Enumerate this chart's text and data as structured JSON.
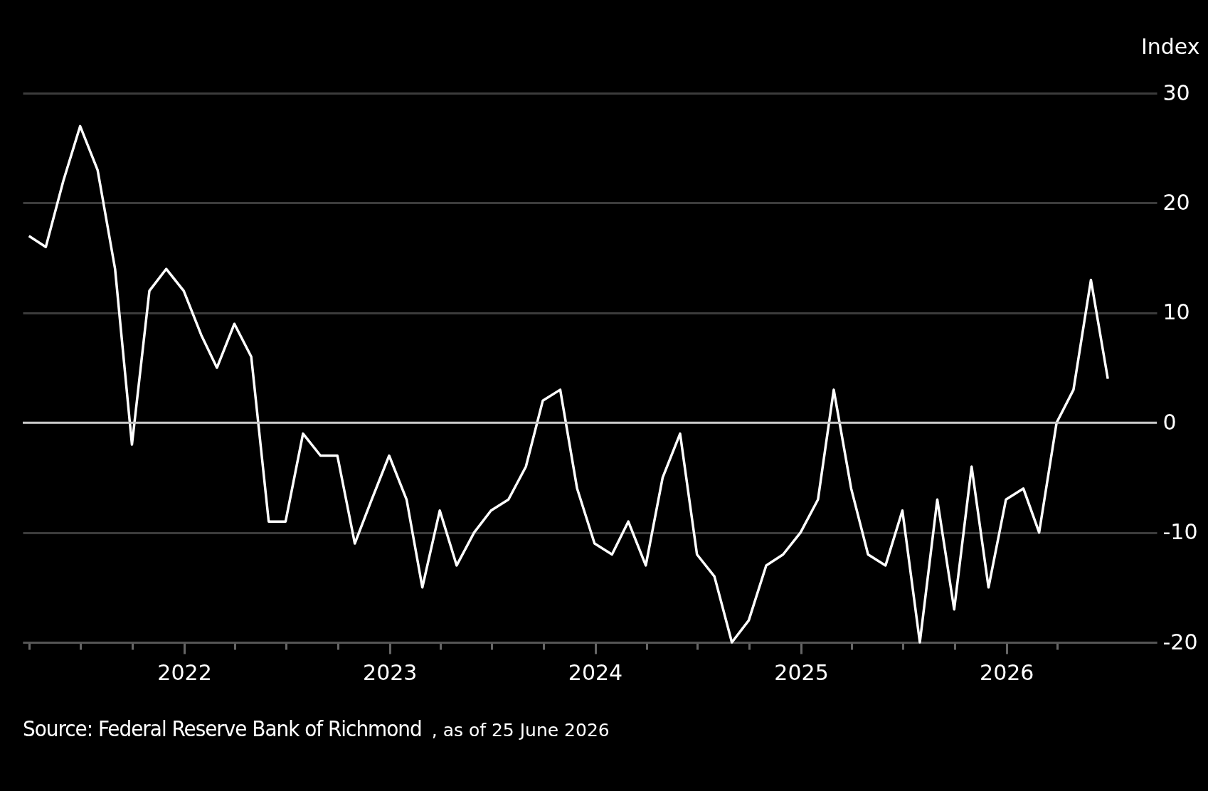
{
  "chart_data": {
    "type": "line",
    "ylabel": "Index",
    "x": [
      "2021-03-31",
      "2021-04-30",
      "2021-05-31",
      "2021-06-30",
      "2021-07-31",
      "2021-08-31",
      "2021-09-30",
      "2021-10-31",
      "2021-11-30",
      "2021-12-31",
      "2022-01-31",
      "2022-02-28",
      "2022-03-31",
      "2022-04-30",
      "2022-05-31",
      "2022-06-30",
      "2022-07-31",
      "2022-08-31",
      "2022-09-30",
      "2022-10-31",
      "2022-11-30",
      "2022-12-31",
      "2023-01-31",
      "2023-02-28",
      "2023-03-31",
      "2023-04-30",
      "2023-05-31",
      "2023-06-30",
      "2023-07-31",
      "2023-08-31",
      "2023-09-30",
      "2023-10-31",
      "2023-11-30",
      "2023-12-31",
      "2024-01-31",
      "2024-02-29",
      "2024-03-31",
      "2024-04-30",
      "2024-05-31",
      "2024-06-30",
      "2024-07-31",
      "2024-08-31",
      "2024-09-30",
      "2024-10-31",
      "2024-11-30",
      "2024-12-31",
      "2025-01-31",
      "2025-02-28",
      "2025-03-31",
      "2025-04-30",
      "2025-05-31",
      "2025-06-30",
      "2025-07-31",
      "2025-08-31",
      "2025-09-30",
      "2025-10-31",
      "2025-11-30",
      "2025-12-31",
      "2026-01-31",
      "2026-02-28",
      "2026-03-31",
      "2026-04-30",
      "2026-05-31",
      "2026-06-30"
    ],
    "values": [
      17,
      16,
      22,
      27,
      23,
      14,
      -2,
      12,
      14,
      12,
      8,
      5,
      9,
      6,
      -9,
      -9,
      -1,
      -3,
      -3,
      -11,
      -7,
      -3,
      -7,
      -15,
      -8,
      -13,
      -10,
      -8,
      -7,
      -4,
      2,
      3,
      -6,
      -11,
      -12,
      -9,
      -13,
      -5,
      -1,
      -12,
      -14,
      -20,
      -18,
      -13,
      -12,
      -10,
      -7,
      3,
      -6,
      -12,
      -13,
      -8,
      -20,
      -7,
      -17,
      -4,
      -15,
      -7,
      -6,
      -10,
      0,
      3,
      13,
      4
    ],
    "color": "#ffffff",
    "xlim": [
      "2021-03-20",
      "2026-09-25"
    ],
    "xticks": [
      {
        "value": "2021-04",
        "label": null
      },
      {
        "value": "2021-07",
        "label": null
      },
      {
        "value": "2021-10",
        "label": null
      },
      {
        "value": "2022",
        "label": "2022"
      },
      {
        "value": "2022-04",
        "label": null
      },
      {
        "value": "2022-07",
        "label": null
      },
      {
        "value": "2022-10",
        "label": null
      },
      {
        "value": "2023",
        "label": "2023"
      },
      {
        "value": "2023-04",
        "label": null
      },
      {
        "value": "2023-07",
        "label": null
      },
      {
        "value": "2023-10",
        "label": null
      },
      {
        "value": "2024",
        "label": "2024"
      },
      {
        "value": "2024-04",
        "label": null
      },
      {
        "value": "2024-07",
        "label": null
      },
      {
        "value": "2024-10",
        "label": null
      },
      {
        "value": "2025",
        "label": "2025"
      },
      {
        "value": "2025-04",
        "label": null
      },
      {
        "value": "2025-07",
        "label": null
      },
      {
        "value": "2025-10",
        "label": null
      },
      {
        "value": "2026",
        "label": "2026"
      },
      {
        "value": "2026-04",
        "label": null
      }
    ],
    "ylim": [
      -20,
      30
    ],
    "yticks": [
      -20,
      -10,
      0,
      10,
      20,
      30
    ],
    "grid": "y",
    "ref_lines": [
      {
        "axis": "y",
        "value": 0,
        "color": "#c8c8c8"
      }
    ],
    "annotations": [
      "Source: Federal Reserve Bank of Richmond",
      ", as of 25 June 2026"
    ]
  }
}
